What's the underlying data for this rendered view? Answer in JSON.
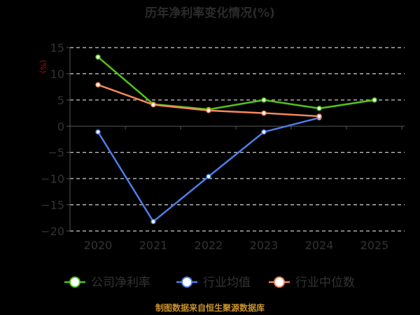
{
  "chart_data": {
    "type": "line",
    "title": "历年净利率变化情况(%)",
    "ylabel": "(%)",
    "xlabel": "",
    "categories": [
      "2020",
      "2021",
      "2022",
      "2023",
      "2024",
      "2025"
    ],
    "ylim": [
      -20,
      15
    ],
    "yticks": [
      15,
      10,
      5,
      0,
      -5,
      -10,
      -15,
      -20
    ],
    "ytick_labels": [
      "15",
      "10",
      "5",
      "0",
      "−5",
      "−10",
      "−15",
      "−20"
    ],
    "grid": true,
    "legend_position": "bottom",
    "series": [
      {
        "name": "公司净利率",
        "color": "#52c41a",
        "values": [
          13.2,
          4.2,
          3.2,
          5.0,
          3.4,
          5.0
        ]
      },
      {
        "name": "行业均值",
        "color": "#4e7ee6",
        "values": [
          -1.1,
          -18.2,
          -9.6,
          -1.1,
          1.6,
          null
        ]
      },
      {
        "name": "行业中位数",
        "color": "#f5895c",
        "values": [
          7.9,
          4.1,
          3.0,
          2.5,
          1.9,
          null
        ]
      }
    ],
    "source": "制图数据来自恒生聚源数据库"
  }
}
